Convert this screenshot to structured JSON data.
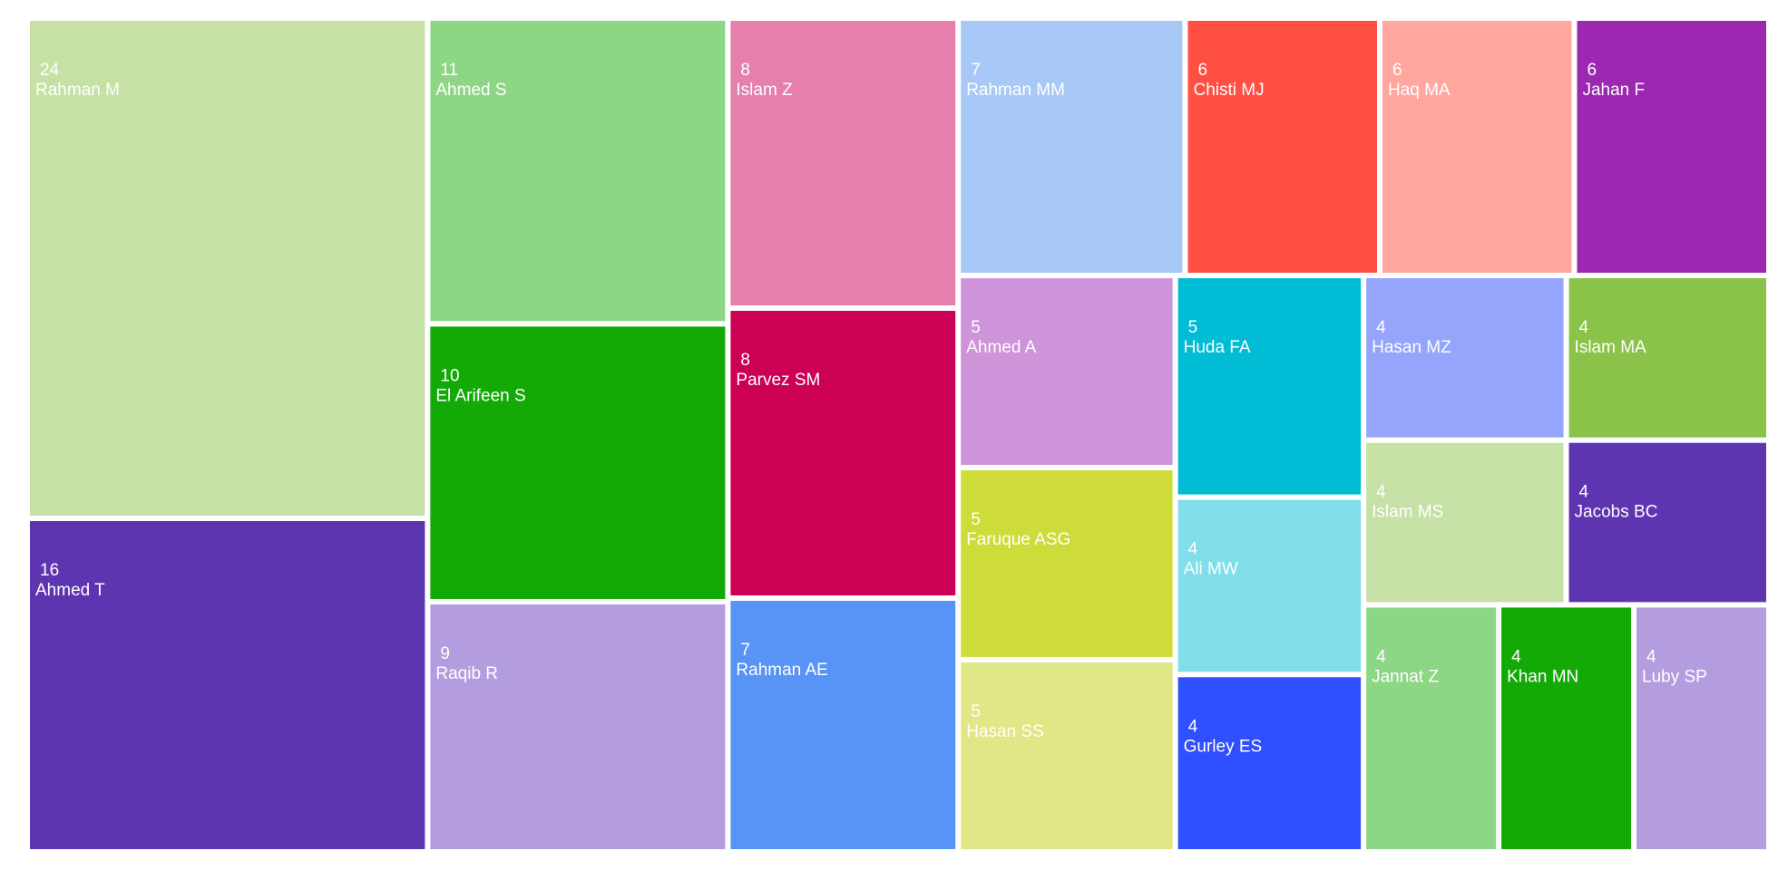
{
  "chart_data": {
    "type": "treemap",
    "items": [
      {
        "name": "Rahman M",
        "value": 24,
        "color": "#c5e1a5"
      },
      {
        "name": "Ahmed T",
        "value": 16,
        "color": "#5e35b1"
      },
      {
        "name": "Ahmed S",
        "value": 11,
        "color": "#8cd685"
      },
      {
        "name": "El Arifeen S",
        "value": 10,
        "color": "#13a906"
      },
      {
        "name": "Raqib R",
        "value": 9,
        "color": "#b39ddf"
      },
      {
        "name": "Islam Z",
        "value": 8,
        "color": "#e57fab"
      },
      {
        "name": "Parvez SM",
        "value": 8,
        "color": "#cc0055"
      },
      {
        "name": "Rahman AE",
        "value": 7,
        "color": "#5794f6"
      },
      {
        "name": "Rahman MM",
        "value": 7,
        "color": "#a8c8f8"
      },
      {
        "name": "Chisti MJ",
        "value": 6,
        "color": "#ff4f42"
      },
      {
        "name": "Haq MA",
        "value": 6,
        "color": "#ffa69e"
      },
      {
        "name": "Jahan F",
        "value": 6,
        "color": "#9c27b0"
      },
      {
        "name": "Ahmed A",
        "value": 5,
        "color": "#ce93d8"
      },
      {
        "name": "Faruque ASG",
        "value": 5,
        "color": "#cddc39"
      },
      {
        "name": "Hasan SS",
        "value": 5,
        "color": "#e1e686"
      },
      {
        "name": "Huda FA",
        "value": 5,
        "color": "#00bcd4"
      },
      {
        "name": "Ali MW",
        "value": 4,
        "color": "#80deea"
      },
      {
        "name": "Gurley ES",
        "value": 4,
        "color": "#304ffe"
      },
      {
        "name": "Hasan MZ",
        "value": 4,
        "color": "#95a5fb"
      },
      {
        "name": "Islam MA",
        "value": 4,
        "color": "#8bc34a"
      },
      {
        "name": "Islam MS",
        "value": 4,
        "color": "#c5e1a5"
      },
      {
        "name": "Jacobs BC",
        "value": 4,
        "color": "#5e35b1"
      },
      {
        "name": "Jannat Z",
        "value": 4,
        "color": "#8cd685"
      },
      {
        "name": "Khan MN",
        "value": 4,
        "color": "#13a906"
      },
      {
        "name": "Luby SP",
        "value": 4,
        "color": "#b39ddf"
      }
    ]
  }
}
